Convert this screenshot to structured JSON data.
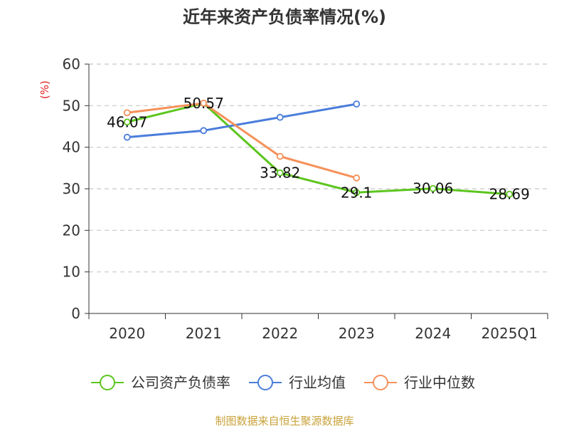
{
  "chart_data": {
    "type": "line",
    "title": "近年来资产负债率情况(%)",
    "ylabel": "(%)",
    "xlabel": "",
    "categories": [
      "2020",
      "2021",
      "2022",
      "2023",
      "2024",
      "2025Q1"
    ],
    "ylim": [
      0,
      60
    ],
    "yticks": [
      0,
      10,
      20,
      30,
      40,
      50,
      60
    ],
    "grid": true,
    "legend_position": "bottom",
    "series": [
      {
        "name": "公司资产负债率",
        "color": "#5cc51e",
        "values": [
          46.07,
          50.57,
          33.82,
          29.1,
          30.06,
          28.69
        ],
        "labels": [
          "46.07",
          "50.57",
          "33.82",
          "29.1",
          "30.06",
          "28.69"
        ]
      },
      {
        "name": "行业均值",
        "color": "#4a7ddb",
        "values": [
          42.4,
          44.0,
          47.2,
          50.4,
          null,
          null
        ],
        "labels": []
      },
      {
        "name": "行业中位数",
        "color": "#f5915a",
        "values": [
          48.3,
          50.6,
          37.8,
          32.6,
          null,
          null
        ],
        "labels": []
      }
    ]
  },
  "source": "制图数据来自恒生聚源数据库"
}
